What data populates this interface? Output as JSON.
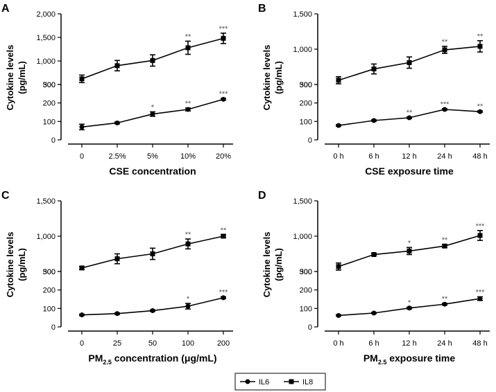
{
  "chart_data": [
    {
      "panel": "A",
      "type": "line",
      "xlabel": "CSE concentration",
      "ylabel": [
        "Cytokine levels",
        "(pg/mL)"
      ],
      "categories": [
        "0",
        "2.5%",
        "5%",
        "10%",
        "20%"
      ],
      "upper": {
        "ylim": [
          500,
          2000
        ],
        "ticks": [
          500,
          1000,
          1500,
          2000
        ],
        "tick_labels": [
          "500",
          "1,000",
          "1,500",
          "2,000"
        ],
        "series": [
          {
            "name": "IL8",
            "values": [
              620,
              900,
              1010,
              1280,
              1480
            ],
            "errors": [
              80,
              110,
              120,
              140,
              110
            ],
            "significance": [
              "",
              "",
              "",
              "**",
              "***"
            ]
          }
        ]
      },
      "lower": {
        "ylim": [
          0,
          300
        ],
        "ticks": [
          0,
          100,
          200,
          300
        ],
        "tick_labels": [
          "0",
          "100",
          "200",
          "300"
        ],
        "series": [
          {
            "name": "IL6",
            "values": [
              70,
              92,
              140,
              165,
              220
            ],
            "errors": [
              15,
              5,
              12,
              8,
              5
            ],
            "significance": [
              "",
              "",
              "*",
              "**",
              "***"
            ]
          }
        ]
      }
    },
    {
      "panel": "B",
      "type": "line",
      "xlabel": "CSE exposure time",
      "ylabel": [
        "Cytokine levels",
        "(pg/mL)"
      ],
      "categories": [
        "0 h",
        "6 h",
        "12 h",
        "24 h",
        "48 h"
      ],
      "upper": {
        "ylim": [
          500,
          1500
        ],
        "ticks": [
          500,
          1000,
          1500
        ],
        "tick_labels": [
          "500",
          "1,000",
          "1,500"
        ],
        "series": [
          {
            "name": "IL8",
            "values": [
              560,
              720,
              810,
              990,
              1040
            ],
            "errors": [
              50,
              70,
              80,
              50,
              80
            ],
            "significance": [
              "",
              "",
              "",
              "**",
              "**"
            ]
          }
        ]
      },
      "lower": {
        "ylim": [
          0,
          300
        ],
        "ticks": [
          0,
          100,
          200,
          300
        ],
        "tick_labels": [
          "0",
          "100",
          "200",
          "300"
        ],
        "series": [
          {
            "name": "IL6",
            "values": [
              78,
              105,
              120,
              165,
              153
            ],
            "errors": [
              4,
              4,
              4,
              4,
              4
            ],
            "significance": [
              "",
              "",
              "**",
              "***",
              "**"
            ]
          }
        ]
      }
    },
    {
      "panel": "C",
      "type": "line",
      "xlabel_main": "PM",
      "xlabel_sub": "2.5",
      "xlabel_rest": " concentration (μg/mL)",
      "ylabel": [
        "Cytokine levels",
        "(pg/mL)"
      ],
      "categories": [
        "0",
        "25",
        "50",
        "100",
        "200"
      ],
      "upper": {
        "ylim": [
          500,
          1500
        ],
        "ticks": [
          500,
          1000,
          1500
        ],
        "tick_labels": [
          "500",
          "1,000",
          "1,500"
        ],
        "series": [
          {
            "name": "IL8",
            "values": [
              550,
              680,
              750,
              890,
              1000
            ],
            "errors": [
              20,
              70,
              80,
              70,
              20
            ],
            "significance": [
              "",
              "",
              "",
              "**",
              "**"
            ]
          }
        ]
      },
      "lower": {
        "ylim": [
          0,
          300
        ],
        "ticks": [
          0,
          100,
          200,
          300
        ],
        "tick_labels": [
          "0",
          "100",
          "200",
          "300"
        ],
        "series": [
          {
            "name": "IL6",
            "values": [
              65,
              72,
              88,
              112,
              158
            ],
            "errors": [
              4,
              4,
              4,
              15,
              5
            ],
            "significance": [
              "",
              "",
              "",
              "*",
              "***"
            ]
          }
        ]
      }
    },
    {
      "panel": "D",
      "type": "line",
      "xlabel_main": "PM",
      "xlabel_sub": "2.5",
      "xlabel_rest": " exposure time",
      "ylabel": [
        "Cytokine levels",
        "(pg/mL)"
      ],
      "categories": [
        "0 h",
        "6 h",
        "12 h",
        "24 h",
        "48 h"
      ],
      "upper": {
        "ylim": [
          500,
          1500
        ],
        "ticks": [
          500,
          1000,
          1500
        ],
        "tick_labels": [
          "500",
          "1,000",
          "1,500"
        ],
        "series": [
          {
            "name": "IL8",
            "values": [
              570,
              740,
              790,
              860,
              1010
            ],
            "errors": [
              50,
              15,
              50,
              20,
              70
            ],
            "significance": [
              "",
              "",
              "*",
              "**",
              "***"
            ]
          }
        ]
      },
      "lower": {
        "ylim": [
          0,
          300
        ],
        "ticks": [
          0,
          100,
          200,
          300
        ],
        "tick_labels": [
          "0",
          "100",
          "200",
          "300"
        ],
        "series": [
          {
            "name": "IL6",
            "values": [
              62,
              75,
              102,
              123,
              153
            ],
            "errors": [
              3,
              3,
              5,
              5,
              10
            ],
            "significance": [
              "",
              "",
              "*",
              "**",
              "***"
            ]
          }
        ]
      }
    }
  ],
  "legend": [
    {
      "name": "IL6",
      "marker": "circle"
    },
    {
      "name": "IL8",
      "marker": "square"
    }
  ]
}
